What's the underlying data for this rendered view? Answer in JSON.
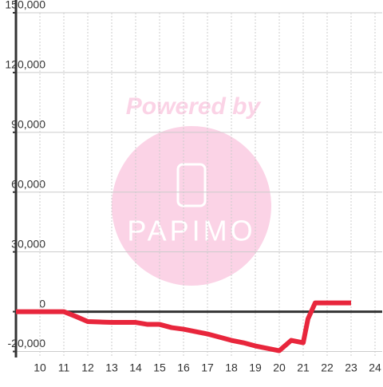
{
  "chart_data": {
    "type": "line",
    "annotations": [
      "Powered by",
      "PAPIMO"
    ],
    "x": [
      9,
      11,
      11.5,
      12,
      12.5,
      13,
      14,
      14.5,
      15,
      15.5,
      16,
      16.5,
      17,
      17.5,
      18,
      18.5,
      19,
      19.5,
      20,
      20.5,
      21,
      21.2,
      21.5,
      23
    ],
    "values": [
      0,
      0,
      -2400,
      -5000,
      -5200,
      -5400,
      -5400,
      -6400,
      -6400,
      -8000,
      -8800,
      -10000,
      -11200,
      -12800,
      -14400,
      -15600,
      -17200,
      -18400,
      -19600,
      -14400,
      -15600,
      -3600,
      4400,
      4400
    ],
    "color": "#e8263c",
    "xlim": [
      9,
      24.3
    ],
    "xticks": [
      10,
      11,
      12,
      13,
      14,
      15,
      16,
      17,
      18,
      19,
      20,
      21,
      22,
      23,
      24
    ],
    "ylim": [
      -23000,
      150000
    ],
    "yticks": [
      {
        "value": -20000,
        "label": "-20,000"
      },
      0,
      {
        "value": 30000,
        "label": "30,000"
      },
      {
        "value": 60000,
        "label": "60,000"
      },
      {
        "value": 90000,
        "label": "90,000"
      },
      {
        "value": 120000,
        "label": "120,000"
      },
      {
        "value": 150000,
        "label": "150,000"
      }
    ],
    "grid": true
  }
}
